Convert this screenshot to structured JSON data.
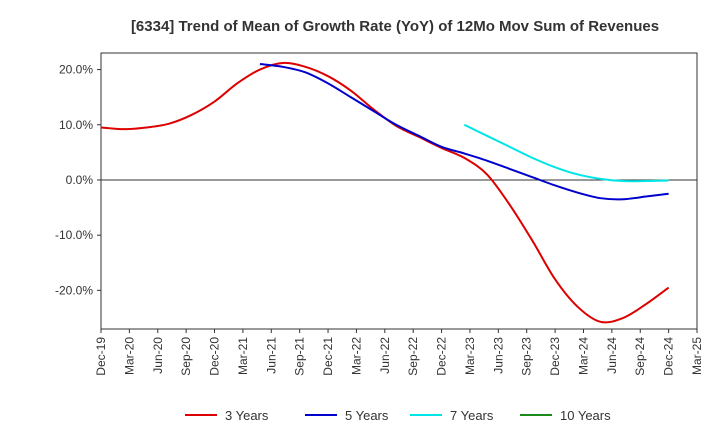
{
  "chart_data": {
    "type": "line",
    "title": "[6334]  Trend of Mean of Growth Rate (YoY) of 12Mo Mov Sum of Revenues",
    "xlabel": "",
    "ylabel": "",
    "ylim": [
      -27,
      23
    ],
    "grid": true,
    "legend_position": "bottom",
    "y_ticks": [
      20,
      10,
      0,
      -10,
      -20
    ],
    "y_tick_labels": [
      "20.0%",
      "10.0%",
      "0.0%",
      "-10.0%",
      "-20.0%"
    ],
    "x_ticks": [
      "Dec-19",
      "Mar-20",
      "Jun-20",
      "Sep-20",
      "Dec-20",
      "Mar-21",
      "Jun-21",
      "Sep-21",
      "Dec-21",
      "Mar-22",
      "Jun-22",
      "Sep-22",
      "Dec-22",
      "Mar-23",
      "Jun-23",
      "Sep-23",
      "Dec-23",
      "Mar-24",
      "Jun-24",
      "Sep-24",
      "Dec-24",
      "Mar-25"
    ],
    "series": [
      {
        "name": "3 Years",
        "color": "#dd0000",
        "points": [
          [
            0,
            9.5
          ],
          [
            1,
            9.2
          ],
          [
            2,
            9.5
          ],
          [
            3,
            10.2
          ],
          [
            4,
            11.8
          ],
          [
            5,
            14.2
          ],
          [
            6,
            17.5
          ],
          [
            7,
            20.0
          ],
          [
            8,
            21.2
          ],
          [
            9,
            20.5
          ],
          [
            10,
            18.8
          ],
          [
            11,
            16.2
          ],
          [
            12,
            12.8
          ],
          [
            13,
            9.8
          ],
          [
            14,
            7.8
          ],
          [
            15,
            5.8
          ],
          [
            16,
            4.0
          ],
          [
            17,
            1.0
          ],
          [
            18,
            -4.5
          ],
          [
            19,
            -11.0
          ],
          [
            20,
            -18.0
          ],
          [
            21,
            -23.0
          ],
          [
            22,
            -25.7
          ],
          [
            23,
            -25.0
          ],
          [
            24,
            -22.5
          ],
          [
            25,
            -19.5
          ]
        ]
      },
      {
        "name": "5 Years",
        "color": "#0000cc",
        "points": [
          [
            7,
            21.0
          ],
          [
            8,
            20.5
          ],
          [
            9,
            19.5
          ],
          [
            10,
            17.5
          ],
          [
            11,
            15.0
          ],
          [
            12,
            12.5
          ],
          [
            13,
            10.0
          ],
          [
            14,
            8.0
          ],
          [
            15,
            6.0
          ],
          [
            16,
            4.8
          ],
          [
            17,
            3.5
          ],
          [
            18,
            2.0
          ],
          [
            19,
            0.5
          ],
          [
            20,
            -1.0
          ],
          [
            21,
            -2.3
          ],
          [
            22,
            -3.3
          ],
          [
            23,
            -3.5
          ],
          [
            24,
            -3.0
          ],
          [
            25,
            -2.5
          ]
        ]
      },
      {
        "name": "7 Years",
        "color": "#00e5e5",
        "points": [
          [
            16,
            10.0
          ],
          [
            17,
            8.0
          ],
          [
            18,
            6.0
          ],
          [
            19,
            4.0
          ],
          [
            20,
            2.3
          ],
          [
            21,
            1.0
          ],
          [
            22,
            0.2
          ],
          [
            23,
            -0.2
          ],
          [
            24,
            -0.2
          ],
          [
            25,
            -0.1
          ]
        ]
      },
      {
        "name": "10 Years",
        "color": "#1a8a1a",
        "points": []
      }
    ]
  }
}
